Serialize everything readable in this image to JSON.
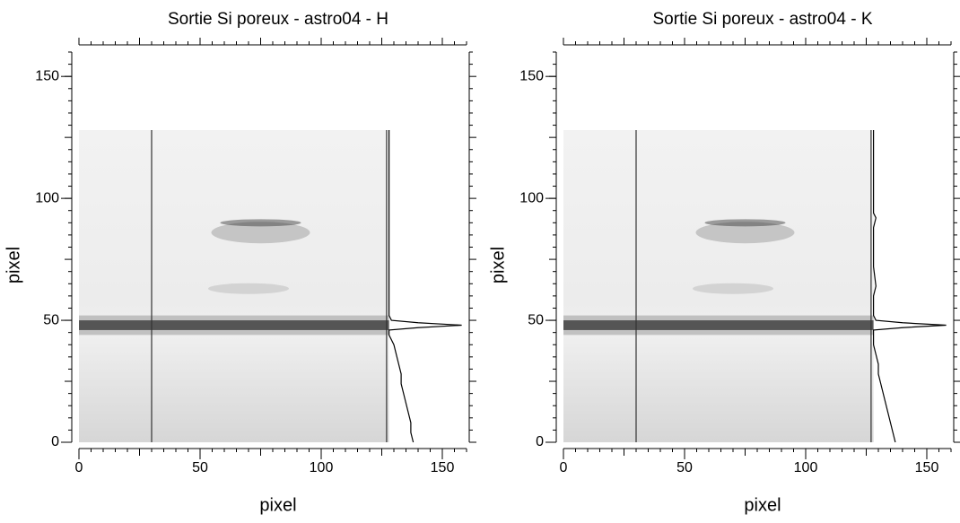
{
  "chart_data": [
    {
      "type": "image",
      "title": "Sortie Si poreux - astro04 - H",
      "xlabel": "pixel",
      "ylabel": "pixel",
      "xlim": [
        0,
        160
      ],
      "ylim": [
        0,
        160
      ],
      "xticks": [
        0,
        50,
        100,
        150
      ],
      "yticks": [
        0,
        50,
        100,
        150
      ],
      "image_extent": [
        0,
        128,
        0,
        128
      ],
      "cursor_x": [
        30,
        127
      ],
      "color": "#000000",
      "profile": {
        "y": [
          0,
          4,
          8,
          12,
          16,
          20,
          24,
          28,
          32,
          36,
          40,
          44,
          46,
          47,
          48,
          49,
          50,
          52,
          56,
          64,
          72,
          80,
          88,
          96,
          104,
          112,
          120,
          128
        ],
        "x": [
          138,
          137,
          137,
          136,
          135,
          134,
          133,
          133,
          132,
          131,
          130,
          128,
          128,
          140,
          158,
          140,
          129,
          128,
          128,
          128,
          128,
          128,
          128,
          128,
          128,
          128,
          128,
          128
        ]
      }
    },
    {
      "type": "image",
      "title": "Sortie Si poreux - astro04 - K",
      "xlabel": "pixel",
      "ylabel": "pixel",
      "xlim": [
        0,
        160
      ],
      "ylim": [
        0,
        160
      ],
      "xticks": [
        0,
        50,
        100,
        150
      ],
      "yticks": [
        0,
        50,
        100,
        150
      ],
      "image_extent": [
        0,
        128,
        0,
        128
      ],
      "cursor_x": [
        30,
        127
      ],
      "color": "#000000",
      "profile": {
        "y": [
          0,
          4,
          8,
          12,
          16,
          20,
          24,
          28,
          32,
          36,
          40,
          44,
          46,
          47,
          48,
          49,
          50,
          52,
          60,
          64,
          72,
          80,
          88,
          92,
          94,
          96,
          104,
          120,
          128
        ],
        "x": [
          137,
          136,
          135,
          134,
          133,
          132,
          131,
          130,
          130,
          129,
          128,
          128,
          128,
          140,
          158,
          140,
          129,
          128,
          128,
          129,
          128,
          128,
          128,
          129,
          128,
          128,
          128,
          128,
          128
        ]
      }
    }
  ]
}
